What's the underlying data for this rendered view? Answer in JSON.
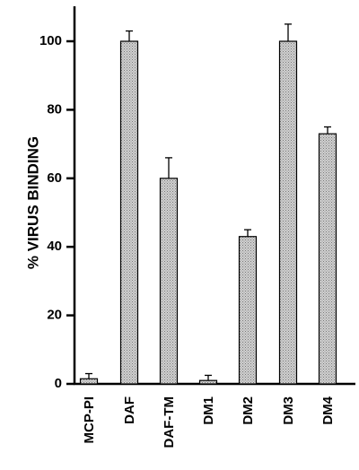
{
  "chart_data": {
    "type": "bar",
    "title": "",
    "xlabel": "",
    "ylabel": "% VIRUS BINDING",
    "categories": [
      "MCP-PI",
      "DAF",
      "DAF-TM",
      "DM1",
      "DM2",
      "DM3",
      "DM4"
    ],
    "values": [
      1.5,
      100,
      60,
      1,
      43,
      100,
      73
    ],
    "error_bars": [
      1.5,
      3,
      6,
      1.5,
      2,
      5,
      2
    ],
    "ylim": [
      0,
      110
    ],
    "yticks": [
      0,
      20,
      40,
      60,
      80,
      100
    ],
    "grid": false,
    "legend": "none",
    "bar_fill": "#c4c4c4",
    "bar_stroke": "#000000"
  }
}
